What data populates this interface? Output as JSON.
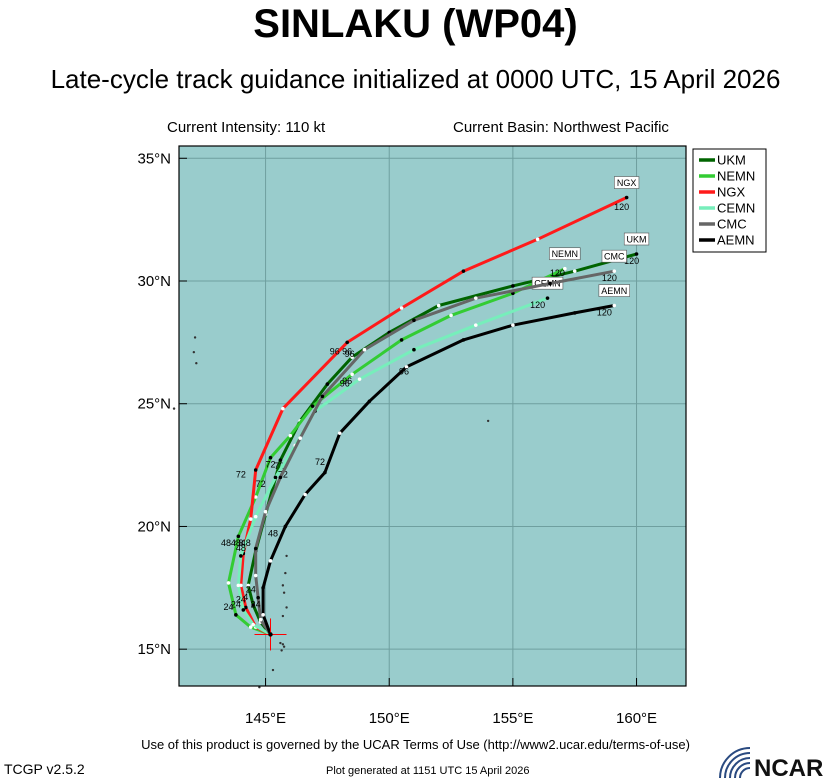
{
  "title": "SINLAKU (WP04)",
  "subtitle": "Late-cycle track guidance initialized at 0000 UTC, 15 April 2026",
  "current_intensity": "Current Intensity: 110 kt",
  "current_basin": "Current Basin: Northwest Pacific",
  "terms_of_use": "Use of this product is governed by the UCAR Terms of Use (http://www2.ucar.edu/terms-of-use)",
  "version": "TCGP v2.5.2",
  "generated": "Plot generated at 1151 UTC  15 April 2026",
  "logo_text": "NCAR",
  "colors": {
    "ocean": "#99cccc",
    "land": "#ffffff",
    "current_position": "#ff0000"
  },
  "map": {
    "lon_range": [
      141.5,
      162.0
    ],
    "lat_range": [
      13.5,
      35.5
    ],
    "lon_ticks": [
      {
        "value": 145,
        "label": "145°E"
      },
      {
        "value": 150,
        "label": "150°E"
      },
      {
        "value": 155,
        "label": "155°E"
      },
      {
        "value": 160,
        "label": "160°E"
      }
    ],
    "lat_ticks": [
      {
        "value": 15,
        "label": "15°N"
      },
      {
        "value": 20,
        "label": "20°N"
      },
      {
        "value": 25,
        "label": "25°N"
      },
      {
        "value": 30,
        "label": "30°N"
      },
      {
        "value": 35,
        "label": "35°N"
      }
    ],
    "current_position": [
      145.2,
      15.6
    ],
    "islands": [
      [
        145.75,
        15.1
      ],
      [
        145.7,
        15.2
      ],
      [
        145.65,
        14.95
      ],
      [
        145.6,
        15.25
      ],
      [
        145.7,
        16.35
      ],
      [
        145.85,
        16.7
      ],
      [
        145.75,
        17.3
      ],
      [
        145.7,
        17.6
      ],
      [
        145.8,
        18.1
      ],
      [
        145.85,
        18.8
      ],
      [
        144.75,
        13.45
      ],
      [
        145.3,
        14.15
      ],
      [
        142.1,
        27.1
      ],
      [
        142.2,
        26.65
      ],
      [
        142.15,
        27.7
      ],
      [
        141.3,
        24.8
      ],
      [
        154.0,
        24.3
      ]
    ],
    "legend": [
      "UKM",
      "NEMN",
      "NGX",
      "CEMN",
      "CMC",
      "AEMN"
    ]
  },
  "chart_data": {
    "type": "line",
    "xlabel": "",
    "ylabel": "",
    "xlim": [
      141.5,
      162.0
    ],
    "ylim": [
      13.5,
      35.5
    ],
    "grid": true,
    "legend_position": "top-right",
    "series": [
      {
        "name": "UKM",
        "color": "#006400",
        "points": [
          [
            145.2,
            15.6
          ],
          [
            144.8,
            16.1
          ],
          [
            144.5,
            16.8
          ],
          [
            144.3,
            17.6
          ],
          [
            144.6,
            19.0
          ],
          [
            145.0,
            20.5
          ],
          [
            145.6,
            22.7
          ],
          [
            146.4,
            24.3
          ],
          [
            147.5,
            25.8
          ],
          [
            148.5,
            26.9
          ],
          [
            150.0,
            27.9
          ],
          [
            152.0,
            29.0
          ],
          [
            155.0,
            29.8
          ],
          [
            157.5,
            30.4
          ],
          [
            160.0,
            31.1
          ]
        ],
        "labels": [
          {
            "text": "24",
            "lon": 144.1,
            "lat": 17.0
          },
          {
            "text": "48",
            "lon": 143.9,
            "lat": 19.2
          },
          {
            "text": "72",
            "lon": 145.55,
            "lat": 22.35
          },
          {
            "text": "96",
            "lon": 148.3,
            "lat": 27.0
          },
          {
            "text": "120",
            "lon": 159.8,
            "lat": 30.7
          }
        ],
        "endlabel": "UKM"
      },
      {
        "name": "NEMN",
        "color": "#33cc33",
        "points": [
          [
            145.2,
            15.6
          ],
          [
            144.4,
            15.9
          ],
          [
            143.8,
            16.4
          ],
          [
            143.5,
            17.7
          ],
          [
            143.9,
            19.6
          ],
          [
            144.6,
            21.2
          ],
          [
            145.2,
            22.8
          ],
          [
            146.0,
            23.7
          ],
          [
            146.9,
            24.9
          ],
          [
            148.5,
            26.2
          ],
          [
            150.5,
            27.6
          ],
          [
            152.5,
            28.6
          ],
          [
            155.0,
            29.5
          ],
          [
            157.1,
            30.5
          ]
        ],
        "labels": [
          {
            "text": "24",
            "lon": 143.5,
            "lat": 16.6
          },
          {
            "text": "48",
            "lon": 143.4,
            "lat": 19.2
          },
          {
            "text": "72",
            "lon": 144.8,
            "lat": 21.6
          },
          {
            "text": "96",
            "lon": 148.3,
            "lat": 25.8
          },
          {
            "text": "120",
            "lon": 156.8,
            "lat": 30.2
          }
        ],
        "endlabel": "NEMN"
      },
      {
        "name": "NGX",
        "color": "#ff1a1a",
        "points": [
          [
            145.2,
            15.6
          ],
          [
            144.6,
            15.9
          ],
          [
            144.2,
            16.7
          ],
          [
            144.0,
            17.6
          ],
          [
            144.1,
            18.9
          ],
          [
            144.4,
            20.3
          ],
          [
            144.6,
            22.3
          ],
          [
            145.7,
            24.8
          ],
          [
            148.3,
            27.5
          ],
          [
            150.5,
            28.9
          ],
          [
            153.0,
            30.4
          ],
          [
            156.0,
            31.7
          ],
          [
            159.6,
            33.4
          ]
        ],
        "labels": [
          {
            "text": "24",
            "lon": 143.8,
            "lat": 16.7
          },
          {
            "text": "48",
            "lon": 143.8,
            "lat": 19.2
          },
          {
            "text": "72",
            "lon": 144.0,
            "lat": 22.0
          },
          {
            "text": "96",
            "lon": 147.8,
            "lat": 27.0
          },
          {
            "text": "120",
            "lon": 159.4,
            "lat": 32.9
          }
        ],
        "endlabel": "NGX"
      },
      {
        "name": "CEMN",
        "color": "#77eebb",
        "points": [
          [
            145.2,
            15.6
          ],
          [
            144.5,
            16.0
          ],
          [
            144.1,
            16.6
          ],
          [
            143.9,
            17.6
          ],
          [
            144.0,
            18.8
          ],
          [
            144.6,
            20.4
          ],
          [
            145.4,
            22.0
          ],
          [
            146.2,
            23.3
          ],
          [
            147.0,
            24.7
          ],
          [
            148.8,
            26.0
          ],
          [
            151.0,
            27.2
          ],
          [
            153.5,
            28.2
          ],
          [
            156.4,
            29.3
          ]
        ],
        "labels": [
          {
            "text": "24",
            "lon": 144.0,
            "lat": 16.9
          },
          {
            "text": "48",
            "lon": 144.2,
            "lat": 19.2
          },
          {
            "text": "72",
            "lon": 145.7,
            "lat": 22.0
          },
          {
            "text": "96",
            "lon": 148.2,
            "lat": 25.7
          },
          {
            "text": "120",
            "lon": 156.0,
            "lat": 28.9
          }
        ],
        "endlabel": "CEMN"
      },
      {
        "name": "CMC",
        "color": "#666666",
        "points": [
          [
            145.2,
            15.6
          ],
          [
            144.8,
            16.2
          ],
          [
            144.7,
            17.1
          ],
          [
            144.6,
            18.0
          ],
          [
            144.6,
            19.1
          ],
          [
            145.0,
            20.6
          ],
          [
            145.6,
            22.0
          ],
          [
            146.4,
            23.6
          ],
          [
            147.3,
            25.3
          ],
          [
            149.0,
            27.2
          ],
          [
            151.0,
            28.4
          ],
          [
            153.5,
            29.3
          ],
          [
            156.5,
            29.9
          ],
          [
            159.1,
            30.4
          ]
        ],
        "labels": [
          {
            "text": "24",
            "lon": 144.4,
            "lat": 17.3
          },
          {
            "text": "48",
            "lon": 144.0,
            "lat": 19.0
          },
          {
            "text": "72",
            "lon": 145.2,
            "lat": 22.4
          },
          {
            "text": "96",
            "lon": 148.4,
            "lat": 26.9
          },
          {
            "text": "120",
            "lon": 158.9,
            "lat": 30.0
          }
        ],
        "endlabel": "CMC"
      },
      {
        "name": "AEMN",
        "color": "#000000",
        "points": [
          [
            145.2,
            15.6
          ],
          [
            144.9,
            16.4
          ],
          [
            144.9,
            17.5
          ],
          [
            145.2,
            18.6
          ],
          [
            145.8,
            20.0
          ],
          [
            146.6,
            21.3
          ],
          [
            147.4,
            22.2
          ],
          [
            148.0,
            23.8
          ],
          [
            149.2,
            25.1
          ],
          [
            150.7,
            26.5
          ],
          [
            153.0,
            27.6
          ],
          [
            155.0,
            28.2
          ],
          [
            157.5,
            28.7
          ],
          [
            159.1,
            29.0
          ]
        ],
        "labels": [
          {
            "text": "24",
            "lon": 144.6,
            "lat": 16.7
          },
          {
            "text": "48",
            "lon": 145.3,
            "lat": 19.6
          },
          {
            "text": "72",
            "lon": 147.2,
            "lat": 22.5
          },
          {
            "text": "96",
            "lon": 150.6,
            "lat": 26.2
          },
          {
            "text": "120",
            "lon": 158.7,
            "lat": 28.6
          }
        ],
        "endlabel": "AEMN"
      }
    ]
  }
}
